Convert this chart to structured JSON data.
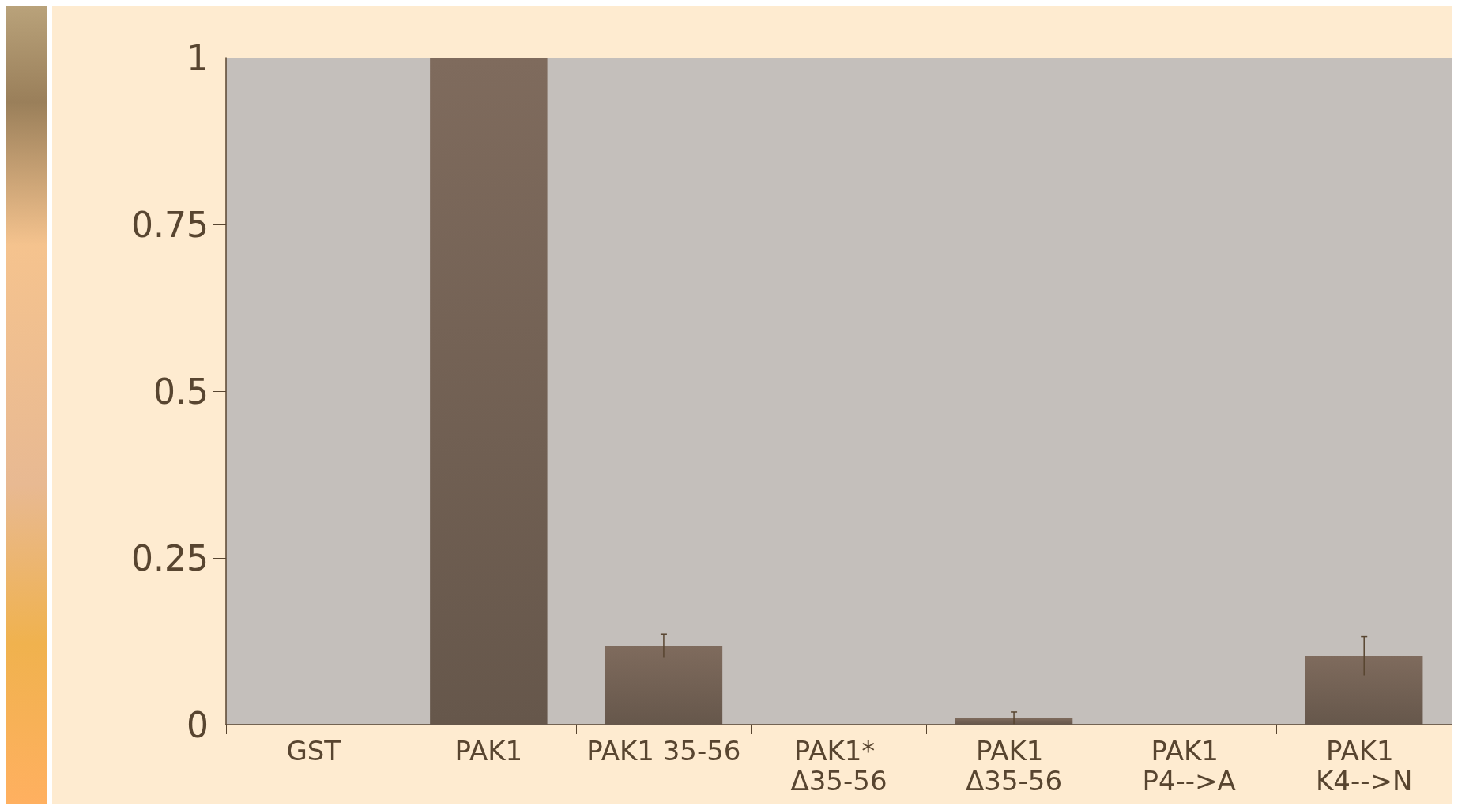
{
  "chart_data": {
    "type": "bar",
    "categories": [
      "GST",
      "PAK1",
      "PAK1 35-56",
      "PAK1* Δ35-56",
      "PAK1 Δ35-56",
      "PAK1 P4-->A",
      "PAK1 K4-->N"
    ],
    "values": [
      0,
      1,
      0.118,
      0,
      0.01,
      0,
      0.103
    ],
    "errors": [
      null,
      null,
      0.018,
      null,
      0.009,
      null,
      0.029
    ],
    "color": "#7f6b5d",
    "ylim": [
      0,
      1
    ],
    "yticks": [
      0,
      0.25,
      0.5,
      0.75,
      1
    ],
    "grid": false
  }
}
